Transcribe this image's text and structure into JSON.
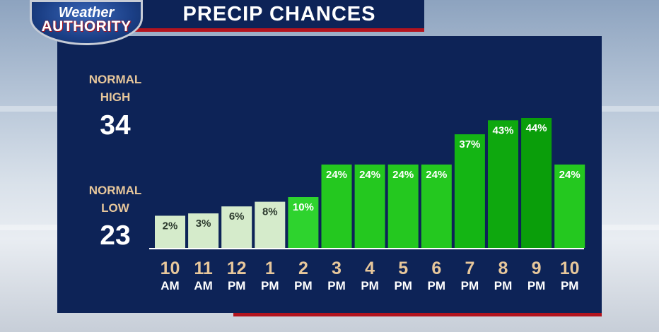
{
  "logo": {
    "line1": "Weather",
    "line2": "AUTHORITY"
  },
  "title": "PRECIP CHANCES",
  "normal_high": {
    "label_line1": "NORMAL",
    "label_line2": "HIGH",
    "value": "34"
  },
  "normal_low": {
    "label_line1": "NORMAL",
    "label_line2": "LOW",
    "value": "23"
  },
  "chart_data": {
    "type": "bar",
    "title": "PRECIP CHANCES",
    "categories": [
      "10 AM",
      "11 AM",
      "12 PM",
      "1 PM",
      "2 PM",
      "3 PM",
      "4 PM",
      "5 PM",
      "6 PM",
      "7 PM",
      "8 PM",
      "9 PM",
      "10 PM"
    ],
    "hours": [
      "10",
      "11",
      "12",
      "1",
      "2",
      "3",
      "4",
      "5",
      "6",
      "7",
      "8",
      "9",
      "10"
    ],
    "ampm": [
      "AM",
      "AM",
      "PM",
      "PM",
      "PM",
      "PM",
      "PM",
      "PM",
      "PM",
      "PM",
      "PM",
      "PM",
      "PM"
    ],
    "values": [
      2,
      3,
      6,
      8,
      10,
      24,
      24,
      24,
      24,
      37,
      43,
      44,
      24
    ],
    "labels": [
      "2%",
      "3%",
      "6%",
      "8%",
      "10%",
      "24%",
      "24%",
      "24%",
      "24%",
      "37%",
      "43%",
      "44%",
      "24%"
    ],
    "colors": [
      "#d5ebcb",
      "#d5ebcb",
      "#d5ebcb",
      "#d5ebcb",
      "#2ed32e",
      "#24c81f",
      "#24c81f",
      "#24c81f",
      "#24c81f",
      "#14b514",
      "#0ea80e",
      "#0a9e0a",
      "#24c81f"
    ],
    "xlabel": "",
    "ylabel": "",
    "grid": false,
    "legend": "none"
  }
}
